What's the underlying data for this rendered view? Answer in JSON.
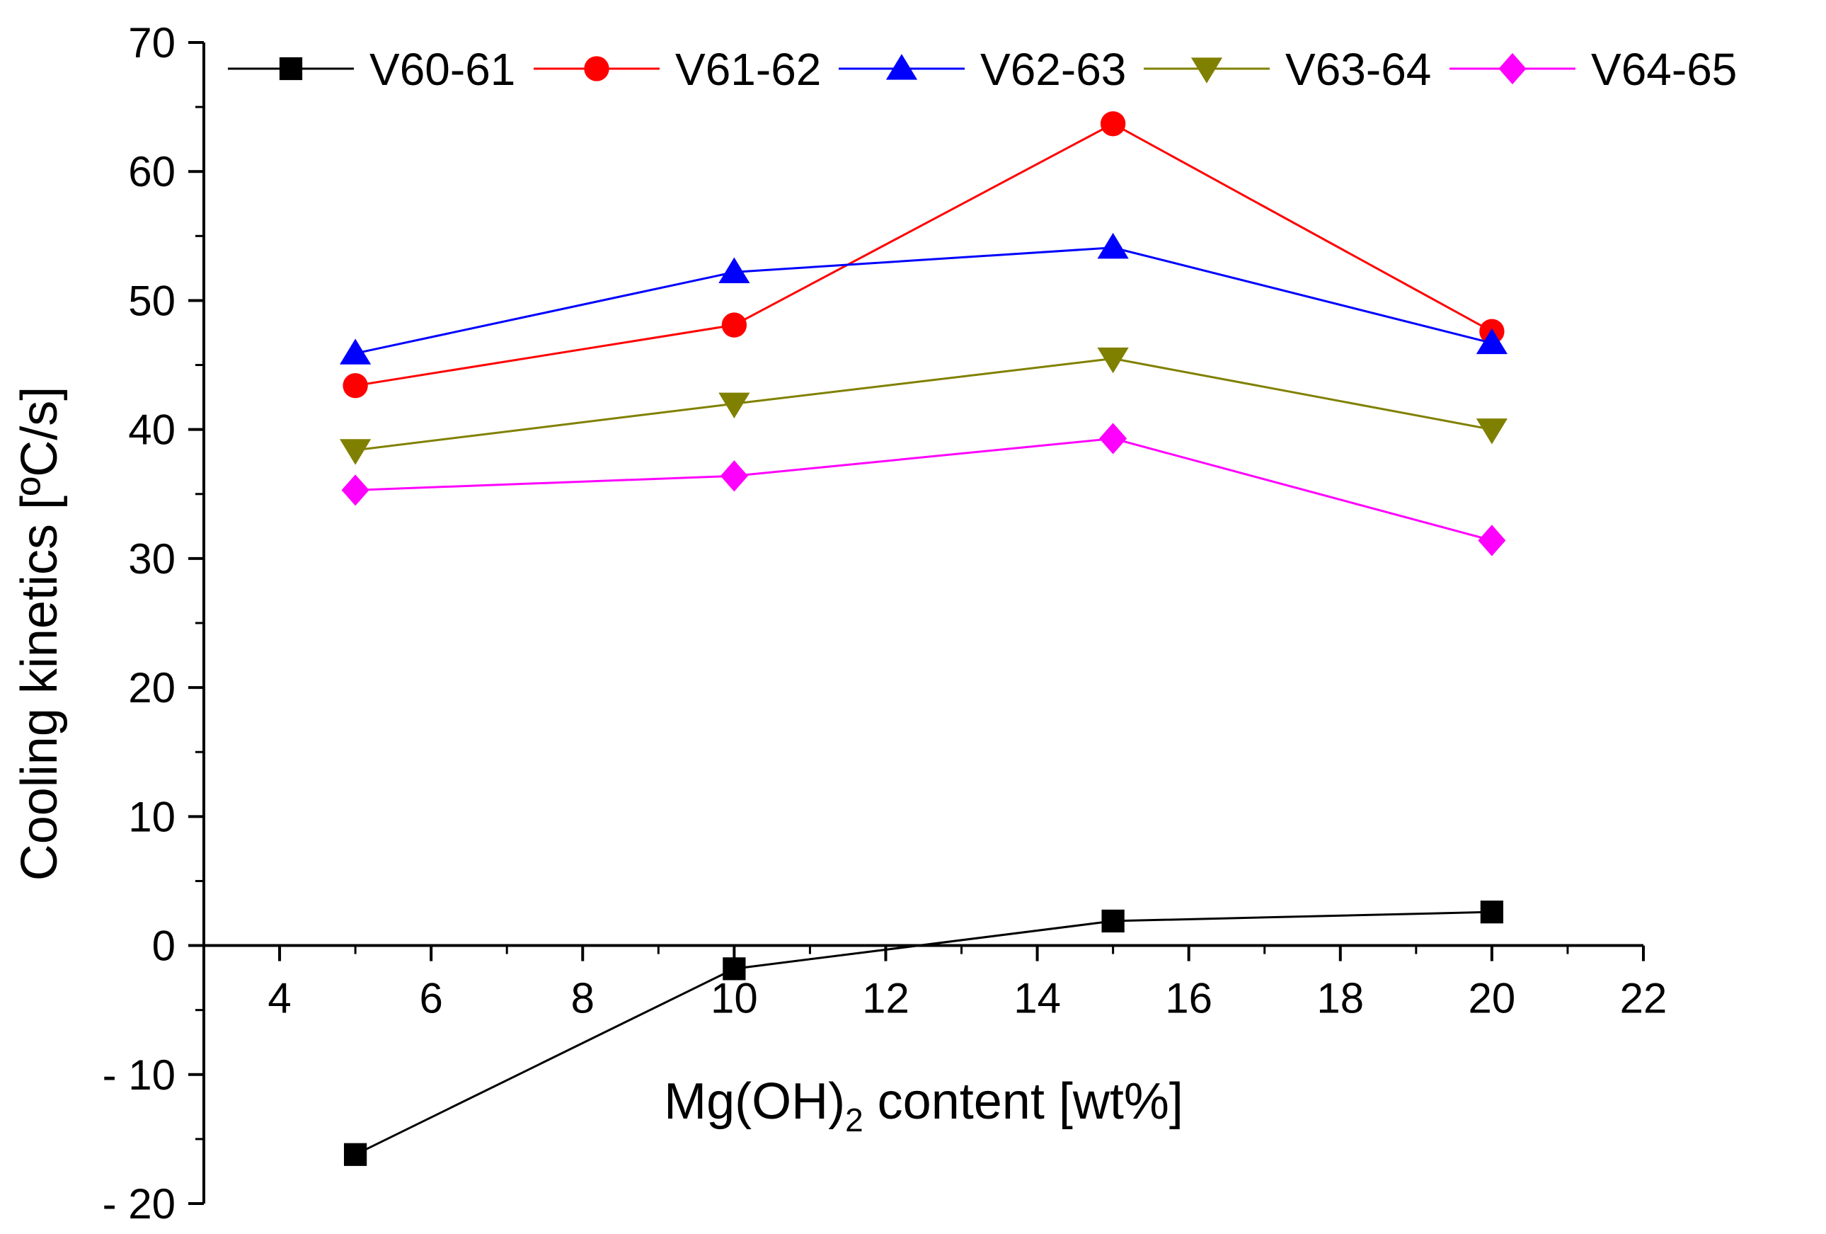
{
  "chart_data": {
    "type": "line",
    "title": "",
    "xlabel": "Mg(OH)",
    "xlabel_subscript": "2",
    "xlabel_suffix": " content [wt%]",
    "ylabel": "Cooling kinetics [ºC/s]",
    "xlim": [
      3,
      22
    ],
    "ylim": [
      -20,
      70
    ],
    "x_ticks": [
      4,
      6,
      8,
      10,
      12,
      14,
      16,
      18,
      20,
      22
    ],
    "x_tick_labels": [
      "4",
      "6",
      "8",
      "10",
      "12",
      "14",
      "16",
      "18",
      "20",
      "22"
    ],
    "y_ticks": [
      -20,
      -10,
      0,
      10,
      20,
      30,
      40,
      50,
      60,
      70
    ],
    "y_tick_labels": [
      "- 20",
      "- 10",
      "0",
      "10",
      "20",
      "30",
      "40",
      "50",
      "60",
      "70"
    ],
    "grid": false,
    "legend_position": "top",
    "x": [
      5,
      10,
      15,
      20
    ],
    "series": [
      {
        "name": "V60-61",
        "color": "#000000",
        "marker": "square",
        "values": [
          -16.2,
          -1.8,
          1.9,
          2.6
        ]
      },
      {
        "name": "V61-62",
        "color": "#ff0000",
        "marker": "circle",
        "values": [
          43.4,
          48.1,
          63.7,
          47.6
        ]
      },
      {
        "name": "V62-63",
        "color": "#0000ff",
        "marker": "triangle-up",
        "values": [
          45.9,
          52.2,
          54.1,
          46.7
        ]
      },
      {
        "name": "V63-64",
        "color": "#808000",
        "marker": "triangle-down",
        "values": [
          38.4,
          42.0,
          45.5,
          40.0
        ]
      },
      {
        "name": "V64-65",
        "color": "#ff00ff",
        "marker": "diamond",
        "values": [
          35.3,
          36.4,
          39.3,
          31.4
        ]
      }
    ]
  }
}
